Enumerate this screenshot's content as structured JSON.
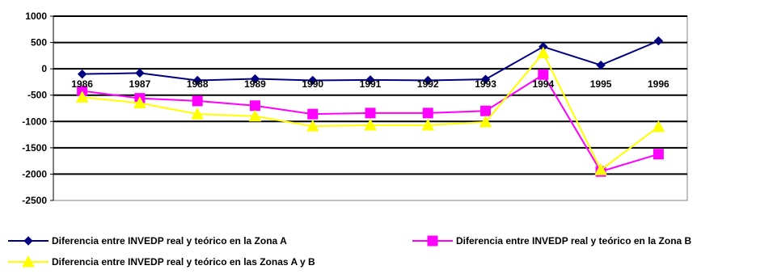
{
  "chart_data": {
    "type": "line",
    "categories": [
      "1986",
      "1987",
      "1988",
      "1989",
      "1990",
      "1991",
      "1992",
      "1993",
      "1994",
      "1995",
      "1996"
    ],
    "ylim": [
      -2500,
      1000
    ],
    "yticks": [
      1000,
      500,
      0,
      -500,
      -1000,
      -1500,
      -2000,
      -2500
    ],
    "ytick_labels": [
      "1000",
      "500",
      "0",
      "-500",
      "-1000",
      "-1500",
      "-2000",
      "-2500"
    ],
    "grid": true,
    "legend_position": "bottom",
    "series": [
      {
        "name": "Diferencia entre INVEDP real y teórico en la Zona A",
        "color": "#000080",
        "marker": "diamond",
        "values": [
          -100,
          -80,
          -220,
          -190,
          -220,
          -210,
          -220,
          -200,
          420,
          70,
          530
        ]
      },
      {
        "name": "Diferencia entre INVEDP real y teórico en la Zona B",
        "color": "#FF00FF",
        "marker": "square",
        "values": [
          -420,
          -560,
          -610,
          -700,
          -860,
          -840,
          -840,
          -800,
          -110,
          -1950,
          -1620
        ]
      },
      {
        "name": "Diferencia entre INVEDP real y teórico en las Zonas A y B",
        "color": "#FFFF00",
        "marker": "triangle",
        "values": [
          -540,
          -650,
          -860,
          -900,
          -1090,
          -1070,
          -1070,
          -1010,
          300,
          -1920,
          -1100
        ]
      }
    ]
  }
}
